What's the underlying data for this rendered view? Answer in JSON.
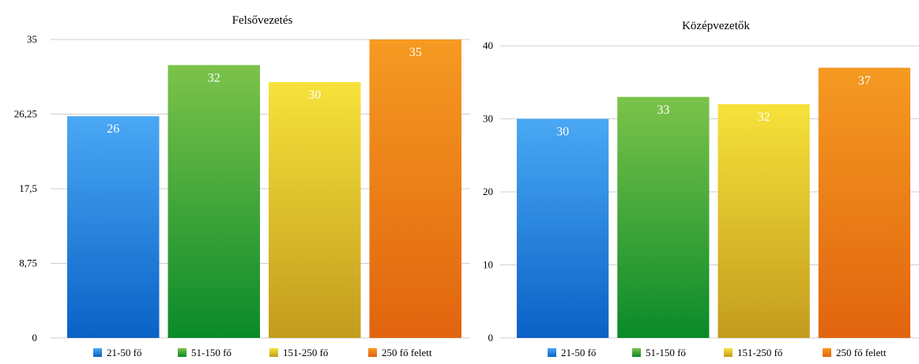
{
  "chart_data": [
    {
      "type": "bar",
      "title": "Felsővezetés",
      "categories": [
        "21-50 fő",
        "51-150 fő",
        "151-250 fő",
        "250 fő felett"
      ],
      "values": [
        26,
        32,
        30,
        35
      ],
      "ylim": [
        0,
        35
      ],
      "yticks": [
        "0",
        "8,75",
        "17,5",
        "26,25",
        "35"
      ],
      "ytick_values": [
        0,
        8.75,
        17.5,
        26.25,
        35
      ],
      "legend": [
        "21-50 fő",
        "51-150 fő",
        "151-250 fő",
        "250 fő felett"
      ],
      "legend_position": "bottom",
      "grid": true,
      "colors": [
        [
          "#4aa8f4",
          "#0a62c6"
        ],
        [
          "#7cc34a",
          "#0a8a2a"
        ],
        [
          "#f6e23a",
          "#c39c1e"
        ],
        [
          "#f59a22",
          "#e1640e"
        ]
      ]
    },
    {
      "type": "bar",
      "title": "Középvezetők",
      "categories": [
        "21-50 fő",
        "51-150 fő",
        "151-250 fő",
        "250 fő felett"
      ],
      "values": [
        30,
        33,
        32,
        37
      ],
      "ylim": [
        0,
        40
      ],
      "yticks": [
        "0",
        "10",
        "20",
        "30",
        "40"
      ],
      "ytick_values": [
        0,
        10,
        20,
        30,
        40
      ],
      "legend": [
        "21-50 fő",
        "51-150 fő",
        "151-250 fő",
        "250 fő felett"
      ],
      "legend_position": "bottom",
      "grid": true,
      "colors": [
        [
          "#4aa8f4",
          "#0a62c6"
        ],
        [
          "#7cc34a",
          "#0a8a2a"
        ],
        [
          "#f6e23a",
          "#c39c1e"
        ],
        [
          "#f59a22",
          "#e1640e"
        ]
      ]
    }
  ]
}
